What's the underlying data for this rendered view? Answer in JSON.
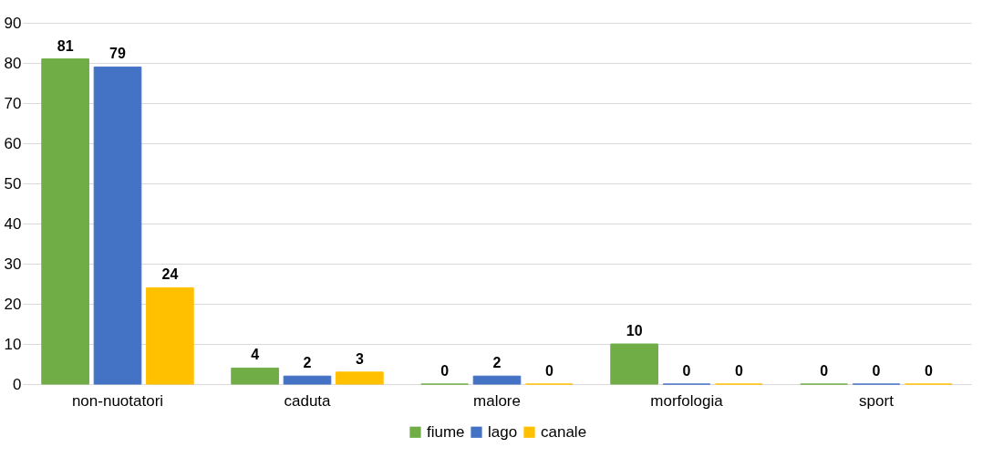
{
  "chart_data": {
    "type": "bar",
    "categories": [
      "non-nuotatori",
      "caduta",
      "malore",
      "morfologia",
      "sport"
    ],
    "series": [
      {
        "name": "fiume",
        "color": "#70ad47",
        "values": [
          81,
          4,
          0,
          10,
          0
        ]
      },
      {
        "name": "lago",
        "color": "#4472c4",
        "values": [
          79,
          2,
          2,
          0,
          0
        ]
      },
      {
        "name": "canale",
        "color": "#ffc000",
        "values": [
          24,
          3,
          0,
          0,
          0
        ]
      }
    ],
    "ylim": [
      0,
      90
    ],
    "yticks": [
      0,
      10,
      20,
      30,
      40,
      50,
      60,
      70,
      80,
      90
    ],
    "grid": "y",
    "legend": "bottom",
    "data_labels": true
  }
}
